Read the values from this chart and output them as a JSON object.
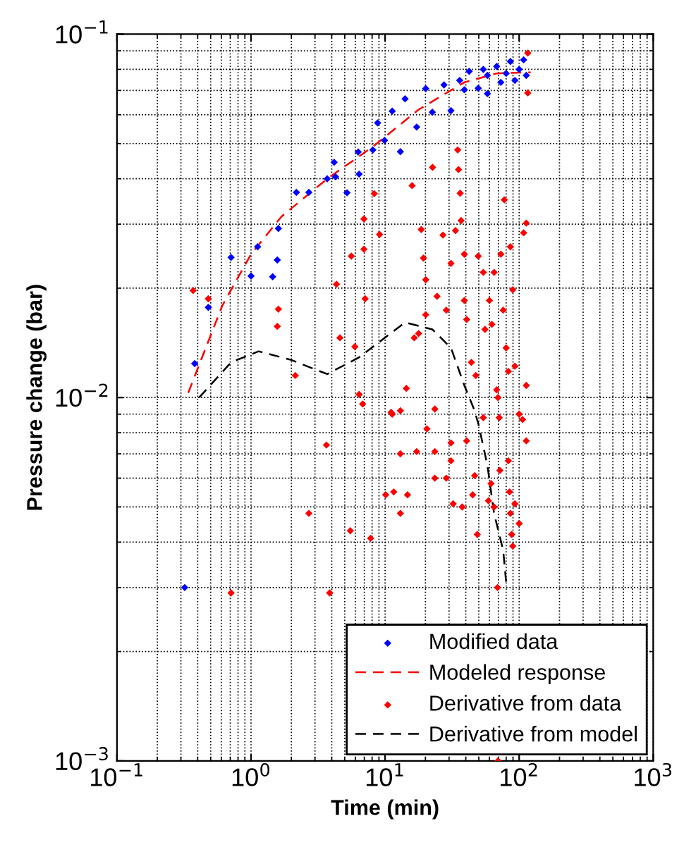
{
  "chart_data": {
    "type": "scatter",
    "xlabel": "Time (min)",
    "ylabel": "Pressure change (bar)",
    "log": "xy",
    "grid": true,
    "legend": "bottom right",
    "xlim": [
      0.1,
      1000
    ],
    "ylim": [
      0.001,
      0.1
    ],
    "xticks": [
      {
        "value": 0.1,
        "label": "10$^{−1}$"
      },
      {
        "value": 1,
        "label": "10$^{0}$"
      },
      {
        "value": 10,
        "label": "10$^{1}$"
      },
      {
        "value": 100,
        "label": "10$^{2}$"
      },
      {
        "value": 1000,
        "label": "10$^{3}$"
      }
    ],
    "yticks": [
      {
        "value": 0.001,
        "label": "10$^{−3}$"
      },
      {
        "value": 0.01,
        "label": "10$^{−2}$"
      },
      {
        "value": 0.1,
        "label": "10$^{−1}$"
      }
    ],
    "series": [
      {
        "name": "Modified data",
        "marker": "diamond",
        "color": "#0000ff",
        "x": [
          0.32,
          0.38,
          0.48,
          0.71,
          1.0,
          1.12,
          1.45,
          1.57,
          1.6,
          2.18,
          2.7,
          3.7,
          4.17,
          4.27,
          5.2,
          6.4,
          6.3,
          8.1,
          8.8,
          9.9,
          11.3,
          13,
          14.1,
          17.2,
          20.1,
          22.5,
          27.5,
          31,
          36,
          39,
          42.4,
          49.5,
          54,
          58,
          58,
          68,
          73,
          80,
          86,
          93,
          100,
          108,
          113
        ],
        "values": [
          0.003,
          0.0124,
          0.0177,
          0.0243,
          0.0216,
          0.026,
          0.0215,
          0.0239,
          0.0292,
          0.0367,
          0.0367,
          0.04,
          0.0444,
          0.0405,
          0.0366,
          0.0412,
          0.0474,
          0.048,
          0.057,
          0.051,
          0.0614,
          0.0475,
          0.0664,
          0.0555,
          0.0708,
          0.061,
          0.0725,
          0.0616,
          0.0746,
          0.0703,
          0.079,
          0.071,
          0.08,
          0.077,
          0.0686,
          0.0815,
          0.0737,
          0.078,
          0.0841,
          0.0746,
          0.08,
          0.085,
          0.077
        ]
      },
      {
        "name": "Modeled response",
        "type": "line",
        "line_style": "dashed",
        "marker": "none",
        "color": "#ff0000",
        "x": [
          0.34,
          0.61,
          1.0,
          1.69,
          3.7,
          8.1,
          17.8,
          39,
          68,
          122
        ],
        "values": [
          0.0103,
          0.0179,
          0.0248,
          0.0315,
          0.04,
          0.049,
          0.062,
          0.0737,
          0.078,
          0.0785
        ]
      },
      {
        "name": "Derivative from data",
        "marker": "diamond",
        "color": "#ff0000",
        "x": [
          0.37,
          0.48,
          1.6,
          1.57,
          2.14,
          4.34,
          4.6,
          5.6,
          5.95,
          6.4,
          6.8,
          6.95,
          6.95,
          7.1,
          8.3,
          9.1,
          11.1,
          13,
          14.4,
          15.9,
          16.5,
          17.8,
          18.6,
          19.3,
          20.1,
          20.1,
          22.6,
          23.5,
          24.4,
          27,
          28.6,
          31,
          33.5,
          34.8,
          35.3,
          36.3,
          36.9,
          39,
          39,
          40.6,
          44,
          47.5,
          49.5,
          54,
          55.6,
          60,
          62.6,
          65,
          68,
          71,
          73,
          76,
          77.5,
          80,
          83,
          86,
          89.6,
          93,
          100,
          108,
          113,
          113,
          116,
          116,
          3.65,
          2.7,
          0.71,
          3.86,
          5.5,
          7.8,
          10.1,
          11.3,
          11.6,
          13,
          13,
          14.7,
          17.2,
          20.5,
          23.5,
          23.5,
          28.6,
          31,
          31,
          32.2,
          37.6,
          40.6,
          45,
          46.6,
          48.7,
          54,
          59,
          61.7,
          65,
          69,
          69.5,
          71.8,
          83,
          84.8,
          86,
          88,
          89.6,
          93,
          100,
          106,
          113,
          69.5
        ],
        "values": [
          0.0197,
          0.0187,
          0.0175,
          0.0157,
          0.0115,
          0.0205,
          0.0146,
          0.0245,
          0.0138,
          0.0102,
          0.0096,
          0.0256,
          0.031,
          0.0187,
          0.0364,
          0.0281,
          0.0091,
          0.0092,
          0.0106,
          0.0383,
          0.0146,
          0.015,
          0.029,
          0.0242,
          0.0211,
          0.0169,
          0.043,
          0.0093,
          0.019,
          0.028,
          0.0174,
          0.0234,
          0.0288,
          0.048,
          0.0424,
          0.0365,
          0.0307,
          0.0248,
          0.0185,
          0.0164,
          0.0125,
          0.0115,
          0.0245,
          0.0221,
          0.0154,
          0.0185,
          0.0159,
          0.0221,
          0.0105,
          0.0088,
          0.0248,
          0.0174,
          0.035,
          0.0137,
          0.0118,
          0.026,
          0.0198,
          0.0122,
          0.009,
          0.0284,
          0.0302,
          0.0108,
          0.0887,
          0.0689,
          0.0074,
          0.0048,
          0.0029,
          0.0029,
          0.0043,
          0.0041,
          0.0054,
          0.009,
          0.0055,
          0.007,
          0.0048,
          0.0054,
          0.0071,
          0.0082,
          0.0071,
          0.006,
          0.006,
          0.0075,
          0.0067,
          0.0051,
          0.005,
          0.0076,
          0.0054,
          0.0061,
          0.0042,
          0.0088,
          0.0052,
          0.0058,
          0.005,
          0.003,
          0.01,
          0.0063,
          0.0067,
          0.0055,
          0.0048,
          0.0042,
          0.0039,
          0.0051,
          0.0045,
          0.0087,
          0.0076,
          0.001
        ]
      },
      {
        "name": "Derivative from model",
        "type": "line",
        "line_style": "dashed",
        "marker": "none",
        "color": "#000000",
        "x": [
          0.41,
          0.71,
          1.14,
          1.98,
          3.7,
          6.4,
          14.1,
          22.5,
          31,
          39,
          46,
          49.5,
          58,
          65,
          76,
          80
        ],
        "values": [
          0.01,
          0.0125,
          0.0134,
          0.0127,
          0.0116,
          0.0129,
          0.0161,
          0.0154,
          0.0137,
          0.0108,
          0.0093,
          0.0085,
          0.0065,
          0.0048,
          0.0038,
          0.0031
        ]
      }
    ]
  }
}
